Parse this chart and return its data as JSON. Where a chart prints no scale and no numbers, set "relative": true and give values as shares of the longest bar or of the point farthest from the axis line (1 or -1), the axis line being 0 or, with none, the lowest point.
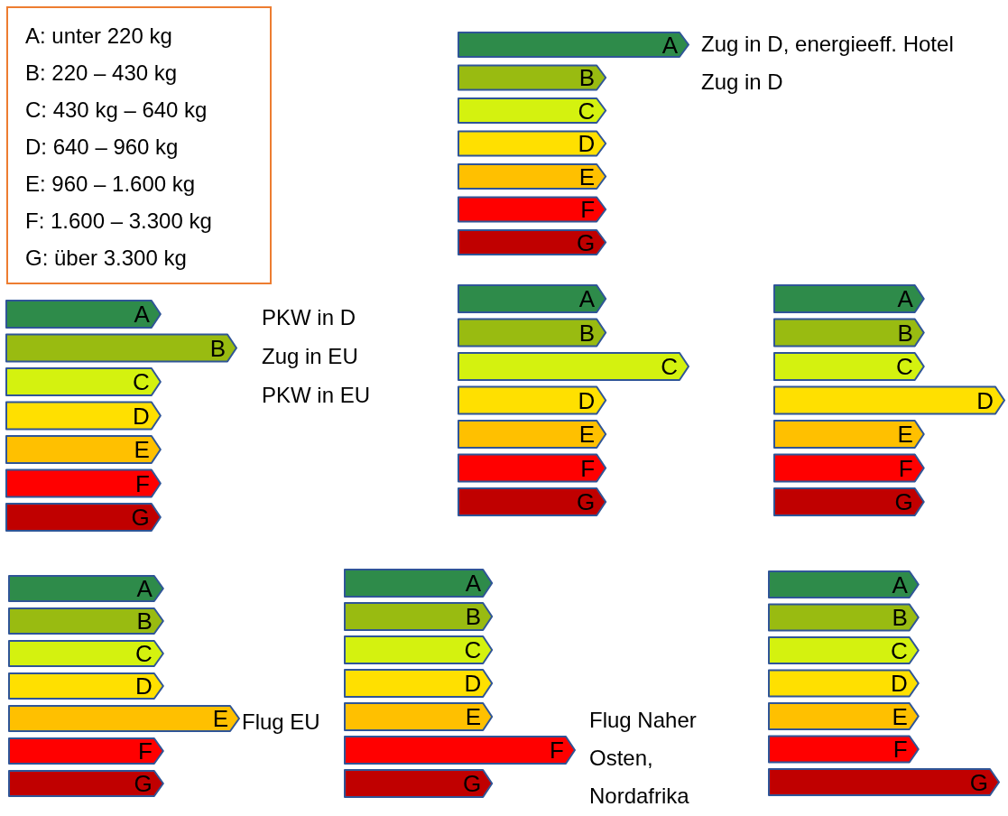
{
  "chart_data": [
    {
      "type": "other",
      "annotations": [
        "A: unter 220 kg",
        "B: 220 – 430 kg",
        "C: 430 kg – 640 kg",
        "D: 640 – 960 kg",
        "E: 960 – 1.600 kg",
        "F: 1.600 – 3.300 kg",
        "G: über 3.300 kg"
      ]
    },
    {
      "type": "bar",
      "orientation": "horizontal",
      "relative": true,
      "categories": [
        "A",
        "B",
        "C",
        "D",
        "E",
        "F",
        "G"
      ],
      "values": [
        1,
        0.64,
        0.64,
        0.64,
        0.64,
        0.64,
        0.64
      ],
      "colors": [
        "#2e8b4a",
        "#99bb11",
        "#d4f20f",
        "#ffe000",
        "#ffc000",
        "#ff0000",
        "#c00000"
      ],
      "annotations": [
        "Zug in D, energieeff. Hotel",
        "Zug in D"
      ]
    },
    {
      "type": "bar",
      "orientation": "horizontal",
      "relative": true,
      "categories": [
        "A",
        "B",
        "C",
        "D",
        "E",
        "F",
        "G"
      ],
      "values": [
        0.67,
        1,
        0.67,
        0.67,
        0.67,
        0.67,
        0.67
      ],
      "colors": [
        "#2e8b4a",
        "#99bb11",
        "#d4f20f",
        "#ffe000",
        "#ffc000",
        "#ff0000",
        "#c00000"
      ],
      "annotations": [
        "PKW in D",
        "Zug in EU",
        "PKW in EU"
      ]
    },
    {
      "type": "bar",
      "orientation": "horizontal",
      "relative": true,
      "categories": [
        "A",
        "B",
        "C",
        "D",
        "E",
        "F",
        "G"
      ],
      "values": [
        0.64,
        0.64,
        1,
        0.64,
        0.64,
        0.64,
        0.64
      ],
      "colors": [
        "#2e8b4a",
        "#99bb11",
        "#d4f20f",
        "#ffe000",
        "#ffc000",
        "#ff0000",
        "#c00000"
      ]
    },
    {
      "type": "bar",
      "orientation": "horizontal",
      "relative": true,
      "categories": [
        "A",
        "B",
        "C",
        "D",
        "E",
        "F",
        "G"
      ],
      "values": [
        0.65,
        0.65,
        0.65,
        1,
        0.65,
        0.65,
        0.65
      ],
      "colors": [
        "#2e8b4a",
        "#99bb11",
        "#d4f20f",
        "#ffe000",
        "#ffc000",
        "#ff0000",
        "#c00000"
      ]
    },
    {
      "type": "bar",
      "orientation": "horizontal",
      "relative": true,
      "categories": [
        "A",
        "B",
        "C",
        "D",
        "E",
        "F",
        "G"
      ],
      "values": [
        0.67,
        0.67,
        0.67,
        0.67,
        1,
        0.67,
        0.67
      ],
      "colors": [
        "#2e8b4a",
        "#99bb11",
        "#d4f20f",
        "#ffe000",
        "#ffc000",
        "#ff0000",
        "#c00000"
      ],
      "annotations": [
        "Flug EU"
      ]
    },
    {
      "type": "bar",
      "orientation": "horizontal",
      "relative": true,
      "categories": [
        "A",
        "B",
        "C",
        "D",
        "E",
        "F",
        "G"
      ],
      "values": [
        0.64,
        0.64,
        0.64,
        0.64,
        0.64,
        1,
        0.64
      ],
      "colors": [
        "#2e8b4a",
        "#99bb11",
        "#d4f20f",
        "#ffe000",
        "#ffc000",
        "#ff0000",
        "#c00000"
      ],
      "annotations": [
        "Flug Naher Osten, Nordafrika"
      ]
    },
    {
      "type": "bar",
      "orientation": "horizontal",
      "relative": true,
      "categories": [
        "A",
        "B",
        "C",
        "D",
        "E",
        "F",
        "G"
      ],
      "values": [
        0.65,
        0.65,
        0.65,
        0.65,
        0.65,
        0.65,
        1
      ],
      "colors": [
        "#2e8b4a",
        "#99bb11",
        "#d4f20f",
        "#ffe000",
        "#ffc000",
        "#ff0000",
        "#c00000"
      ]
    }
  ]
}
